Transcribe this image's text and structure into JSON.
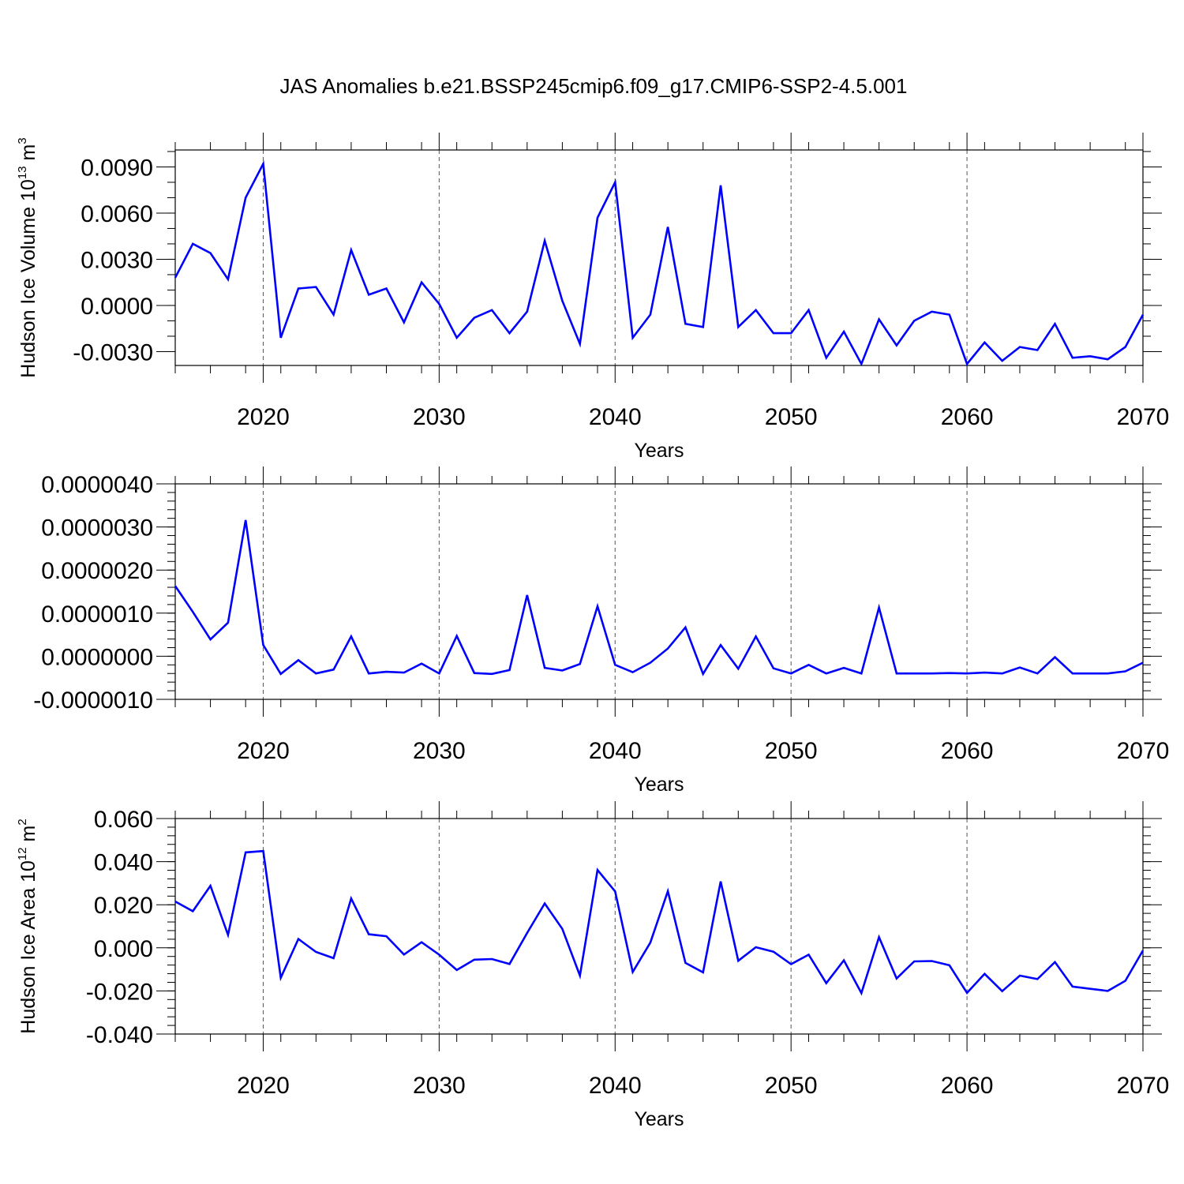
{
  "figure": {
    "title": "JAS Anomalies b.e21.BSSP245cmip6.f09_g17.CMIP6-SSP2-4.5.001"
  },
  "chart_data": [
    {
      "type": "line",
      "title": "",
      "xlabel": "Years",
      "ylabel": "Hudson Ice Volume 10",
      "ylabel_exp": "13",
      "ylabel_unit": " m",
      "ylabel_unit_exp": "3",
      "xlim": [
        2015,
        2070
      ],
      "ylim": [
        -0.0039,
        0.0101
      ],
      "x_ticks": [
        2020,
        2030,
        2040,
        2050,
        2060,
        2070
      ],
      "x_tick_labels": [
        "2020",
        "2030",
        "2040",
        "2050",
        "2060",
        "2070"
      ],
      "y_ticks": [
        -0.003,
        0.0,
        0.003,
        0.006,
        0.009
      ],
      "y_tick_labels": [
        "-0.0030",
        "0.0000",
        "0.0030",
        "0.0060",
        "0.0090"
      ],
      "y_minor_step": 0.001,
      "grid": "vertical dashed at major x ticks",
      "color": "#0000ff",
      "x": [
        2015,
        2016,
        2017,
        2018,
        2019,
        2020,
        2021,
        2022,
        2023,
        2024,
        2025,
        2026,
        2027,
        2028,
        2029,
        2030,
        2031,
        2032,
        2033,
        2034,
        2035,
        2036,
        2037,
        2038,
        2039,
        2040,
        2041,
        2042,
        2043,
        2044,
        2045,
        2046,
        2047,
        2048,
        2049,
        2050,
        2051,
        2052,
        2053,
        2054,
        2055,
        2056,
        2057,
        2058,
        2059,
        2060,
        2061,
        2062,
        2063,
        2064,
        2065,
        2066,
        2067,
        2068,
        2069,
        2070
      ],
      "values": [
        0.0018,
        0.004,
        0.0034,
        0.0017,
        0.007,
        0.0092,
        -0.0021,
        0.0011,
        0.0012,
        -0.0006,
        0.0036,
        0.0007,
        0.0011,
        -0.0011,
        0.0015,
        0.0001,
        -0.0021,
        -0.0008,
        -0.0003,
        -0.0018,
        -0.0004,
        0.0042,
        0.0003,
        -0.0025,
        0.0057,
        0.008,
        -0.0021,
        -0.0006,
        0.0051,
        -0.0012,
        -0.0014,
        0.0078,
        -0.0014,
        -0.0003,
        -0.0018,
        -0.0018,
        -0.0003,
        -0.0034,
        -0.0017,
        -0.0038,
        -0.0009,
        -0.0026,
        -0.001,
        -0.0004,
        -0.0006,
        -0.0038,
        -0.0024,
        -0.0036,
        -0.0027,
        -0.0029,
        -0.0012,
        -0.0034,
        -0.0033,
        -0.0035,
        -0.0027,
        -0.0006
      ]
    },
    {
      "type": "line",
      "title": "",
      "xlabel": "Years",
      "ylabel": "",
      "xlim": [
        2015,
        2070
      ],
      "ylim": [
        -1e-06,
        4e-06
      ],
      "x_ticks": [
        2020,
        2030,
        2040,
        2050,
        2060,
        2070
      ],
      "x_tick_labels": [
        "2020",
        "2030",
        "2040",
        "2050",
        "2060",
        "2070"
      ],
      "y_ticks": [
        -1e-06,
        0.0,
        1e-06,
        2e-06,
        3e-06,
        4e-06
      ],
      "y_tick_labels": [
        "-0.0000010",
        "0.0000000",
        "0.0000010",
        "0.0000020",
        "0.0000030",
        "0.0000040"
      ],
      "y_minor_step": 2e-07,
      "grid": "vertical dashed at major x ticks",
      "color": "#0000ff",
      "x": [
        2015,
        2016,
        2017,
        2018,
        2019,
        2020,
        2021,
        2022,
        2023,
        2024,
        2025,
        2026,
        2027,
        2028,
        2029,
        2030,
        2031,
        2032,
        2033,
        2034,
        2035,
        2036,
        2037,
        2038,
        2039,
        2040,
        2041,
        2042,
        2043,
        2044,
        2045,
        2046,
        2047,
        2048,
        2049,
        2050,
        2051,
        2052,
        2053,
        2054,
        2055,
        2056,
        2057,
        2058,
        2059,
        2060,
        2061,
        2062,
        2063,
        2064,
        2065,
        2066,
        2067,
        2068,
        2069,
        2070
      ],
      "values": [
        1.63e-06,
        1.03e-06,
        3.9e-07,
        7.8e-07,
        3.16e-06,
        2.6e-07,
        -4.1e-07,
        -9e-08,
        -4e-07,
        -3.1e-07,
        4.6e-07,
        -4e-07,
        -3.6e-07,
        -3.8e-07,
        -1.7e-07,
        -4e-07,
        4.7e-07,
        -3.9e-07,
        -4.1e-07,
        -3.2e-07,
        1.42e-06,
        -2.7e-07,
        -3.3e-07,
        -1.8e-07,
        1.16e-06,
        -2e-07,
        -3.7e-07,
        -1.5e-07,
        1.8e-07,
        6.7e-07,
        -4.1e-07,
        2.6e-07,
        -2.9e-07,
        4.6e-07,
        -2.8e-07,
        -4e-07,
        -2e-07,
        -4e-07,
        -2.7e-07,
        -4e-07,
        1.13e-06,
        -4e-07,
        -4e-07,
        -4e-07,
        -3.9e-07,
        -4e-07,
        -3.8e-07,
        -4e-07,
        -2.6e-07,
        -4e-07,
        -2e-08,
        -4e-07,
        -4e-07,
        -4e-07,
        -3.5e-07,
        -1.5e-07
      ]
    },
    {
      "type": "line",
      "title": "",
      "xlabel": "Years",
      "ylabel": "Hudson Ice Area 10",
      "ylabel_exp": "12",
      "ylabel_unit": " m",
      "ylabel_unit_exp": "2",
      "xlim": [
        2015,
        2070
      ],
      "ylim": [
        -0.04,
        0.06
      ],
      "x_ticks": [
        2020,
        2030,
        2040,
        2050,
        2060,
        2070
      ],
      "x_tick_labels": [
        "2020",
        "2030",
        "2040",
        "2050",
        "2060",
        "2070"
      ],
      "y_ticks": [
        -0.04,
        -0.02,
        0.0,
        0.02,
        0.04,
        0.06
      ],
      "y_tick_labels": [
        "-0.040",
        "-0.020",
        "0.000",
        "0.020",
        "0.040",
        "0.060"
      ],
      "y_minor_step": 0.004,
      "grid": "vertical dashed at major x ticks",
      "color": "#0000ff",
      "x": [
        2015,
        2016,
        2017,
        2018,
        2019,
        2020,
        2021,
        2022,
        2023,
        2024,
        2025,
        2026,
        2027,
        2028,
        2029,
        2030,
        2031,
        2032,
        2033,
        2034,
        2035,
        2036,
        2037,
        2038,
        2039,
        2040,
        2041,
        2042,
        2043,
        2044,
        2045,
        2046,
        2047,
        2048,
        2049,
        2050,
        2051,
        2052,
        2053,
        2054,
        2055,
        2056,
        2057,
        2058,
        2059,
        2060,
        2061,
        2062,
        2063,
        2064,
        2065,
        2066,
        2067,
        2068,
        2069,
        2070
      ],
      "values": [
        0.0215,
        0.017,
        0.0288,
        0.006,
        0.0443,
        0.0449,
        -0.0139,
        0.0041,
        -0.0019,
        -0.0048,
        0.0229,
        0.0063,
        0.0054,
        -0.0031,
        0.0026,
        -0.0032,
        -0.0103,
        -0.0055,
        -0.0052,
        -0.0075,
        0.0069,
        0.0206,
        0.0088,
        -0.0129,
        0.0361,
        0.0262,
        -0.0112,
        0.0024,
        0.0263,
        -0.007,
        -0.0114,
        0.0308,
        -0.006,
        0.0003,
        -0.0018,
        -0.0076,
        -0.0032,
        -0.0164,
        -0.0058,
        -0.021,
        0.005,
        -0.0142,
        -0.0063,
        -0.0061,
        -0.0081,
        -0.0209,
        -0.0121,
        -0.0201,
        -0.0129,
        -0.0145,
        -0.0066,
        -0.018,
        -0.019,
        -0.02,
        -0.0153,
        -0.0012
      ]
    }
  ]
}
